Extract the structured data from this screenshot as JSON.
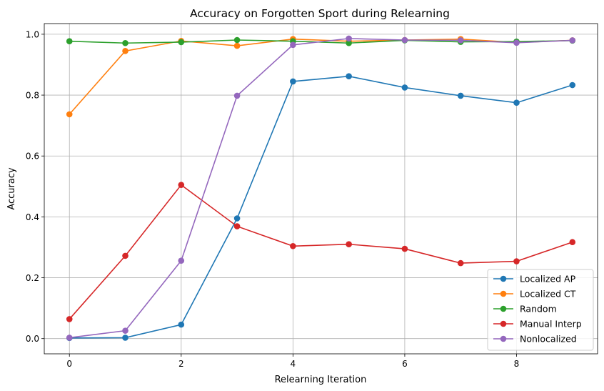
{
  "chart_data": {
    "type": "line",
    "title": "Accuracy on Forgotten Sport during Relearning",
    "xlabel": "Relearning Iteration",
    "ylabel": "Accuracy",
    "x": [
      0,
      1,
      2,
      3,
      4,
      5,
      6,
      7,
      8,
      9
    ],
    "xlim": [
      -0.45,
      9.45
    ],
    "ylim": [
      -0.05,
      1.035
    ],
    "xticks": [
      0,
      2,
      4,
      6,
      8
    ],
    "xtick_labels": [
      "0",
      "2",
      "4",
      "6",
      "8"
    ],
    "yticks": [
      0.0,
      0.2,
      0.4,
      0.6,
      0.8,
      1.0
    ],
    "ytick_labels": [
      "0.0",
      "0.2",
      "0.4",
      "0.6",
      "0.8",
      "1.0"
    ],
    "grid": true,
    "legend_position": "lower-right",
    "series": [
      {
        "name": "Localized AP",
        "color": "#1f77b4",
        "values": [
          0.002,
          0.003,
          0.046,
          0.395,
          0.845,
          0.862,
          0.825,
          0.798,
          0.775,
          0.833
        ]
      },
      {
        "name": "Localized CT",
        "color": "#ff7f0e",
        "values": [
          0.737,
          0.945,
          0.978,
          0.962,
          0.984,
          0.977,
          0.981,
          0.984,
          0.973,
          0.98
        ]
      },
      {
        "name": "Random",
        "color": "#2ca02c",
        "values": [
          0.977,
          0.971,
          0.974,
          0.981,
          0.977,
          0.971,
          0.98,
          0.975,
          0.976,
          0.979
        ]
      },
      {
        "name": "Manual Interp",
        "color": "#d62728",
        "values": [
          0.064,
          0.272,
          0.505,
          0.369,
          0.304,
          0.31,
          0.295,
          0.248,
          0.254,
          0.317
        ]
      },
      {
        "name": "Nonlocalized",
        "color": "#9467bd",
        "values": [
          0.003,
          0.026,
          0.256,
          0.798,
          0.965,
          0.986,
          0.981,
          0.98,
          0.972,
          0.98
        ]
      }
    ]
  }
}
